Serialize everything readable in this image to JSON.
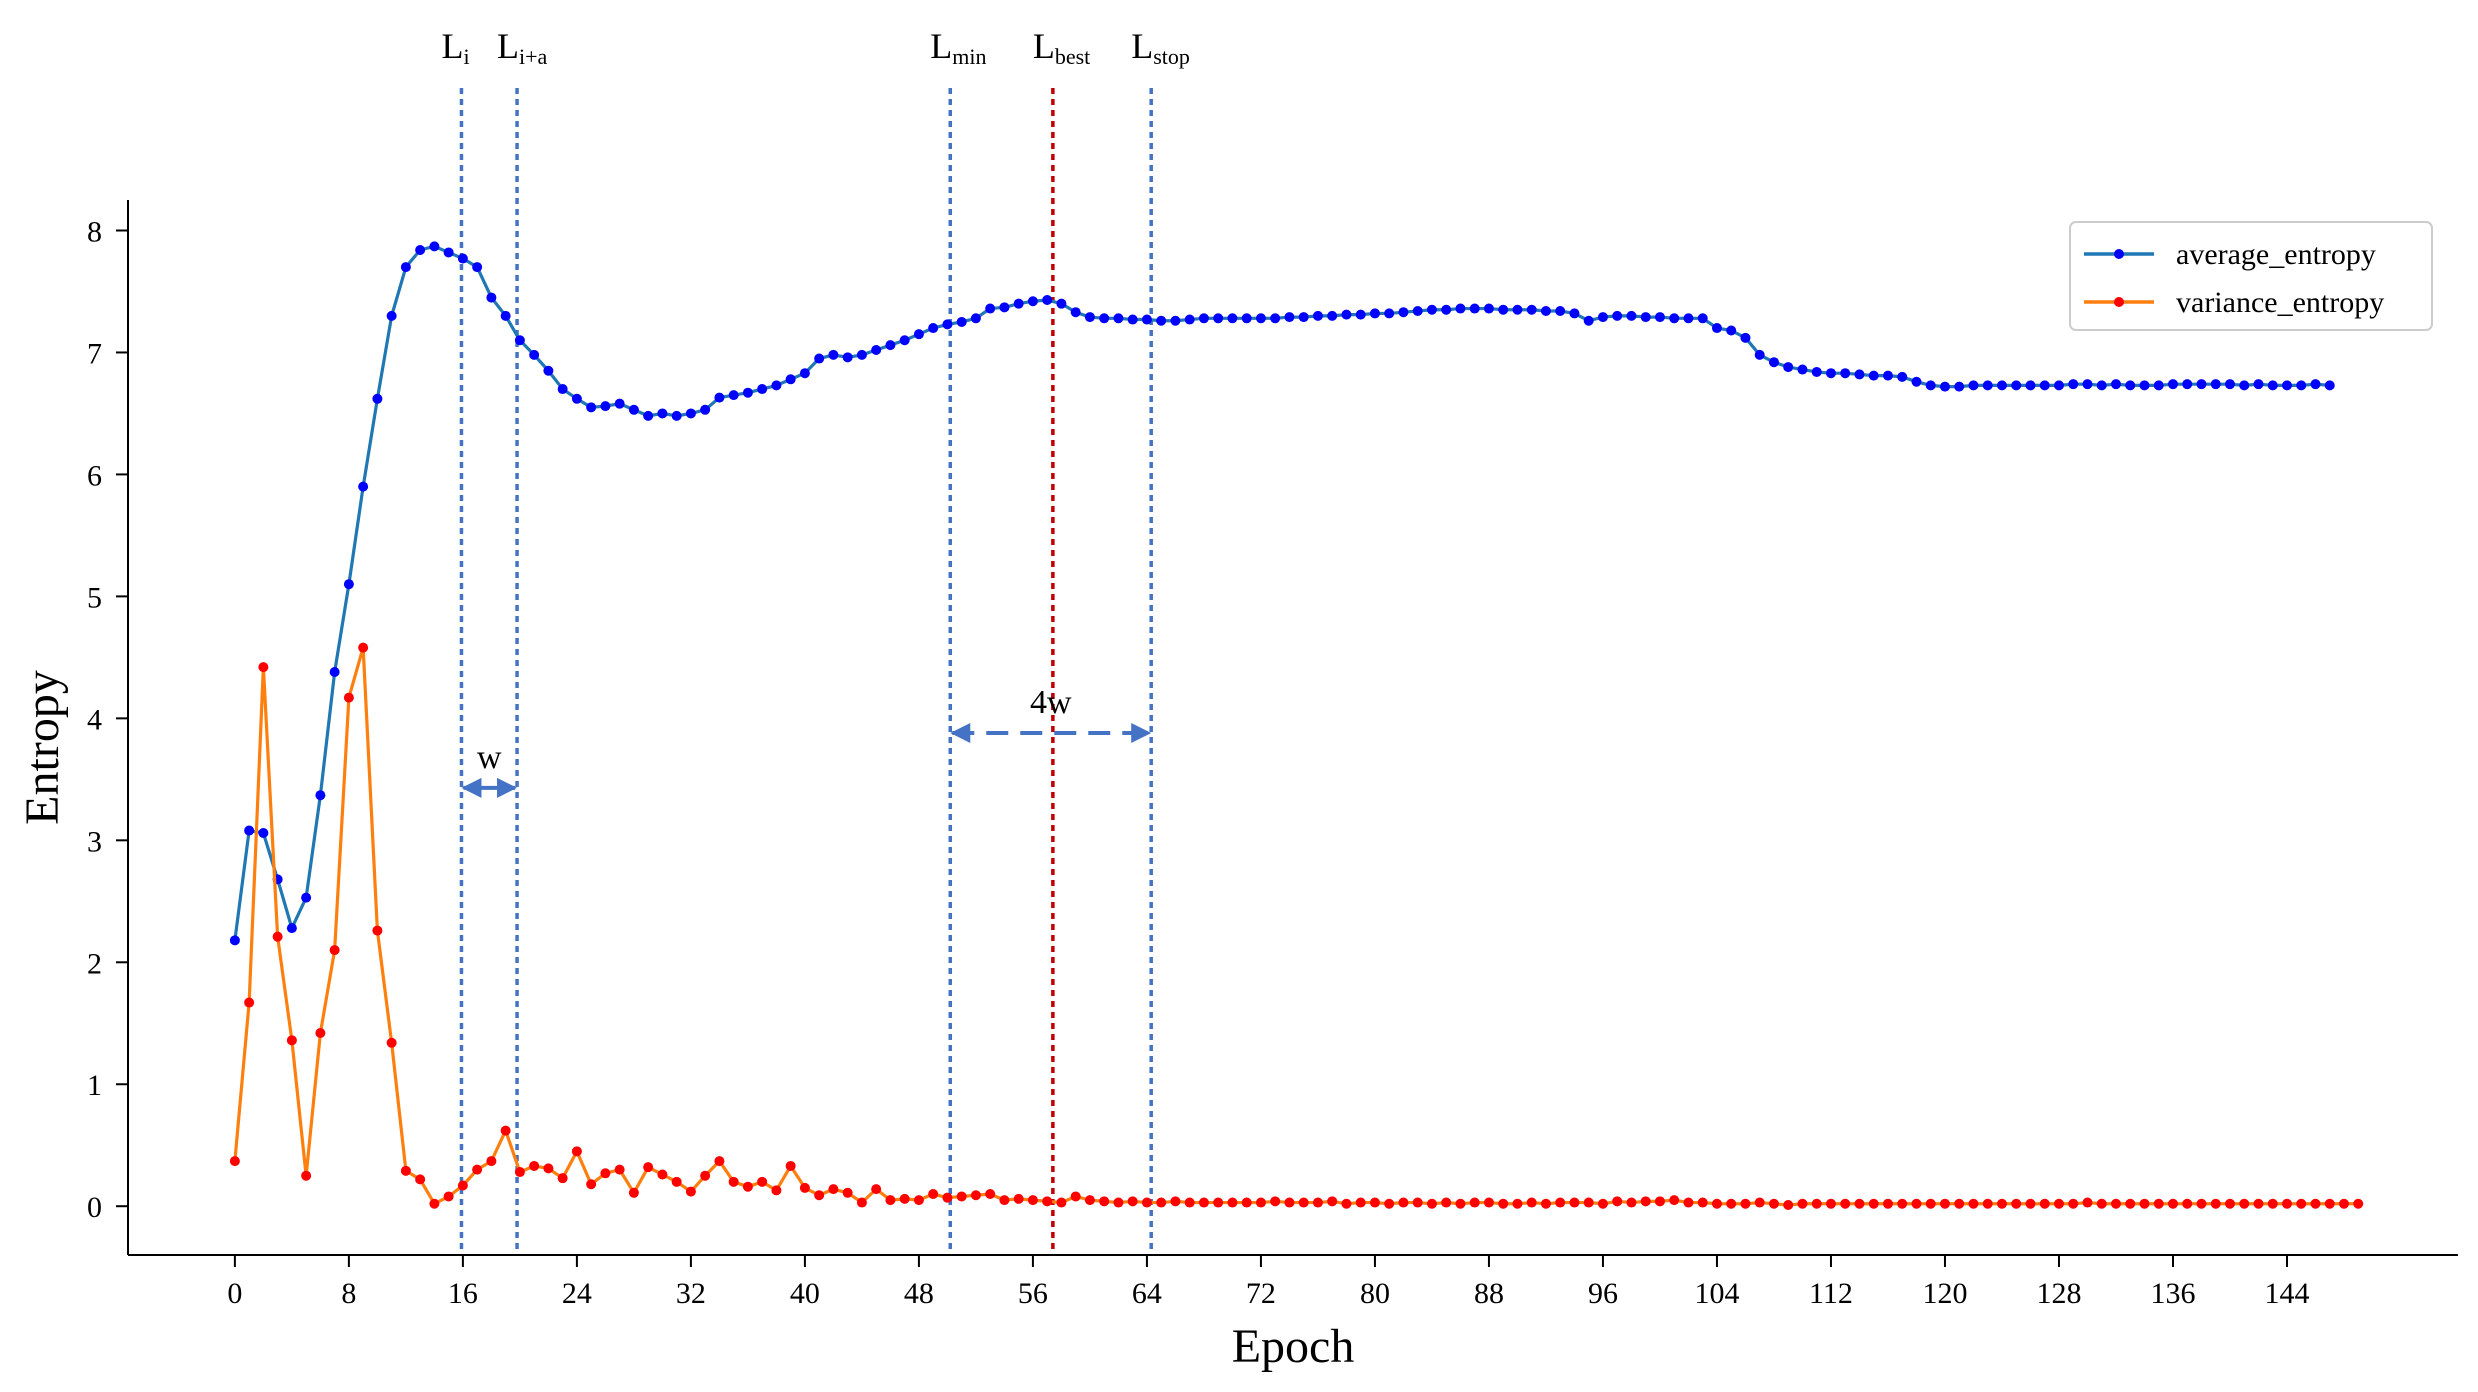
{
  "chart_data": {
    "type": "line",
    "xlabel": "Epoch",
    "ylabel": "Entropy",
    "xlim": [
      -7.5,
      156
    ],
    "ylim": [
      -0.4,
      8.25
    ],
    "xticks": [
      0,
      8,
      16,
      24,
      32,
      40,
      48,
      56,
      64,
      72,
      80,
      88,
      96,
      104,
      112,
      120,
      128,
      136,
      144
    ],
    "yticks": [
      0,
      1,
      2,
      3,
      4,
      5,
      6,
      7,
      8
    ],
    "grid": false,
    "legend_position": "top-right",
    "series": [
      {
        "name": "average_entropy",
        "line_color": "#1f77b4",
        "marker_color": "#0000ff",
        "values": [
          2.18,
          3.08,
          3.06,
          2.68,
          2.28,
          2.53,
          3.37,
          4.38,
          5.1,
          5.9,
          6.62,
          7.3,
          7.7,
          7.84,
          7.87,
          7.82,
          7.77,
          7.7,
          7.45,
          7.3,
          7.1,
          6.98,
          6.85,
          6.7,
          6.62,
          6.55,
          6.56,
          6.58,
          6.53,
          6.48,
          6.5,
          6.48,
          6.5,
          6.53,
          6.63,
          6.65,
          6.67,
          6.7,
          6.73,
          6.78,
          6.83,
          6.95,
          6.98,
          6.96,
          6.98,
          7.02,
          7.06,
          7.1,
          7.15,
          7.2,
          7.23,
          7.25,
          7.28,
          7.36,
          7.37,
          7.4,
          7.42,
          7.43,
          7.4,
          7.33,
          7.29,
          7.28,
          7.28,
          7.27,
          7.27,
          7.26,
          7.26,
          7.27,
          7.28,
          7.28,
          7.28,
          7.28,
          7.28,
          7.28,
          7.29,
          7.29,
          7.3,
          7.3,
          7.31,
          7.31,
          7.32,
          7.32,
          7.33,
          7.34,
          7.35,
          7.35,
          7.36,
          7.36,
          7.36,
          7.35,
          7.35,
          7.35,
          7.34,
          7.34,
          7.32,
          7.26,
          7.29,
          7.3,
          7.3,
          7.29,
          7.29,
          7.28,
          7.28,
          7.28,
          7.2,
          7.18,
          7.12,
          6.98,
          6.92,
          6.88,
          6.86,
          6.84,
          6.83,
          6.83,
          6.82,
          6.81,
          6.81,
          6.8,
          6.76,
          6.73,
          6.72,
          6.72,
          6.73,
          6.73,
          6.73,
          6.73,
          6.73,
          6.73,
          6.73,
          6.74,
          6.74,
          6.73,
          6.74,
          6.73,
          6.73,
          6.73,
          6.74,
          6.74,
          6.74,
          6.74,
          6.74,
          6.73,
          6.74,
          6.73,
          6.73,
          6.73,
          6.74,
          6.73
        ]
      },
      {
        "name": "variance_entropy",
        "line_color": "#ff7f0e",
        "marker_color": "#ff0000",
        "values": [
          0.37,
          1.67,
          4.42,
          2.21,
          1.36,
          0.25,
          1.42,
          2.1,
          4.17,
          4.58,
          2.26,
          1.34,
          0.29,
          0.22,
          0.02,
          0.08,
          0.17,
          0.3,
          0.37,
          0.62,
          0.28,
          0.33,
          0.31,
          0.23,
          0.45,
          0.18,
          0.27,
          0.3,
          0.11,
          0.32,
          0.26,
          0.2,
          0.12,
          0.25,
          0.37,
          0.2,
          0.16,
          0.2,
          0.13,
          0.33,
          0.15,
          0.09,
          0.14,
          0.11,
          0.03,
          0.14,
          0.05,
          0.06,
          0.05,
          0.1,
          0.07,
          0.08,
          0.09,
          0.1,
          0.05,
          0.06,
          0.05,
          0.04,
          0.03,
          0.08,
          0.05,
          0.04,
          0.03,
          0.04,
          0.03,
          0.03,
          0.04,
          0.03,
          0.03,
          0.03,
          0.03,
          0.03,
          0.03,
          0.04,
          0.03,
          0.03,
          0.03,
          0.04,
          0.02,
          0.03,
          0.03,
          0.02,
          0.03,
          0.03,
          0.02,
          0.03,
          0.02,
          0.03,
          0.03,
          0.02,
          0.02,
          0.03,
          0.02,
          0.03,
          0.03,
          0.03,
          0.02,
          0.04,
          0.03,
          0.04,
          0.04,
          0.05,
          0.03,
          0.03,
          0.02,
          0.02,
          0.02,
          0.03,
          0.02,
          0.01,
          0.02,
          0.02,
          0.02,
          0.02,
          0.02,
          0.02,
          0.02,
          0.02,
          0.02,
          0.02,
          0.02,
          0.02,
          0.02,
          0.02,
          0.02,
          0.02,
          0.02,
          0.02,
          0.02,
          0.02,
          0.03,
          0.02,
          0.02,
          0.02,
          0.02,
          0.02,
          0.02,
          0.02,
          0.02,
          0.02,
          0.02,
          0.02,
          0.02,
          0.02,
          0.02,
          0.02,
          0.02,
          0.02,
          0.02,
          0.02
        ]
      }
    ],
    "vlines": [
      {
        "label": "L",
        "sub": "i",
        "x": 15.9,
        "color": "#4472c4"
      },
      {
        "label": "L",
        "sub": "i+a",
        "x": 19.8,
        "color": "#4472c4"
      },
      {
        "label": "L",
        "sub": "min",
        "x": 50.2,
        "color": "#4472c4"
      },
      {
        "label": "L",
        "sub": "best",
        "x": 57.4,
        "color": "#c00000"
      },
      {
        "label": "L",
        "sub": "stop",
        "x": 64.3,
        "color": "#4472c4"
      }
    ],
    "annotations": [
      {
        "text": "w",
        "x_from": 15.9,
        "x_to": 19.8,
        "y": 3.43,
        "style": "solid",
        "color": "#4472c4"
      },
      {
        "text": "4w",
        "x_from": 50.2,
        "x_to": 64.3,
        "y": 3.88,
        "style": "dashed",
        "color": "#4472c4"
      }
    ]
  }
}
